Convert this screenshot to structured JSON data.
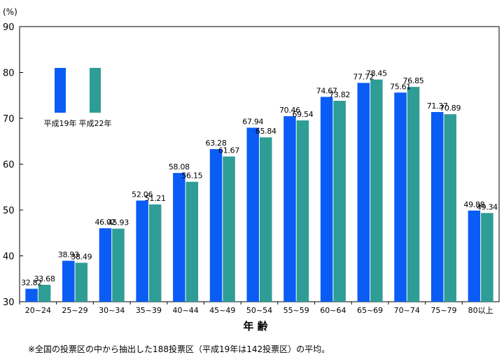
{
  "chart_data": {
    "type": "bar",
    "unit_label": "(%)",
    "xlabel": "年 齢",
    "ylabel": "",
    "ylim": [
      30,
      90
    ],
    "yticks": [
      30,
      40,
      50,
      60,
      70,
      80,
      90
    ],
    "categories": [
      "20~24",
      "25~29",
      "30~34",
      "35~39",
      "40~44",
      "45~49",
      "50~54",
      "55~59",
      "60~64",
      "65~69",
      "70~74",
      "75~79",
      "80以上"
    ],
    "series": [
      {
        "name": "平成19年",
        "color": "#0a5cf5",
        "values": [
          32.82,
          38.93,
          46.02,
          52.06,
          58.08,
          63.28,
          67.94,
          70.46,
          74.67,
          77.72,
          75.61,
          71.37,
          49.88
        ]
      },
      {
        "name": "平成22年",
        "color": "#2e9d96",
        "values": [
          33.68,
          38.49,
          45.93,
          51.21,
          56.15,
          61.67,
          65.84,
          69.54,
          73.82,
          78.45,
          76.85,
          70.89,
          49.34
        ]
      }
    ],
    "legend_position": "top-left",
    "grid": false,
    "note": "※全国の投票区の中から抽出した188投票区（平成19年は142投票区）の平均。"
  }
}
